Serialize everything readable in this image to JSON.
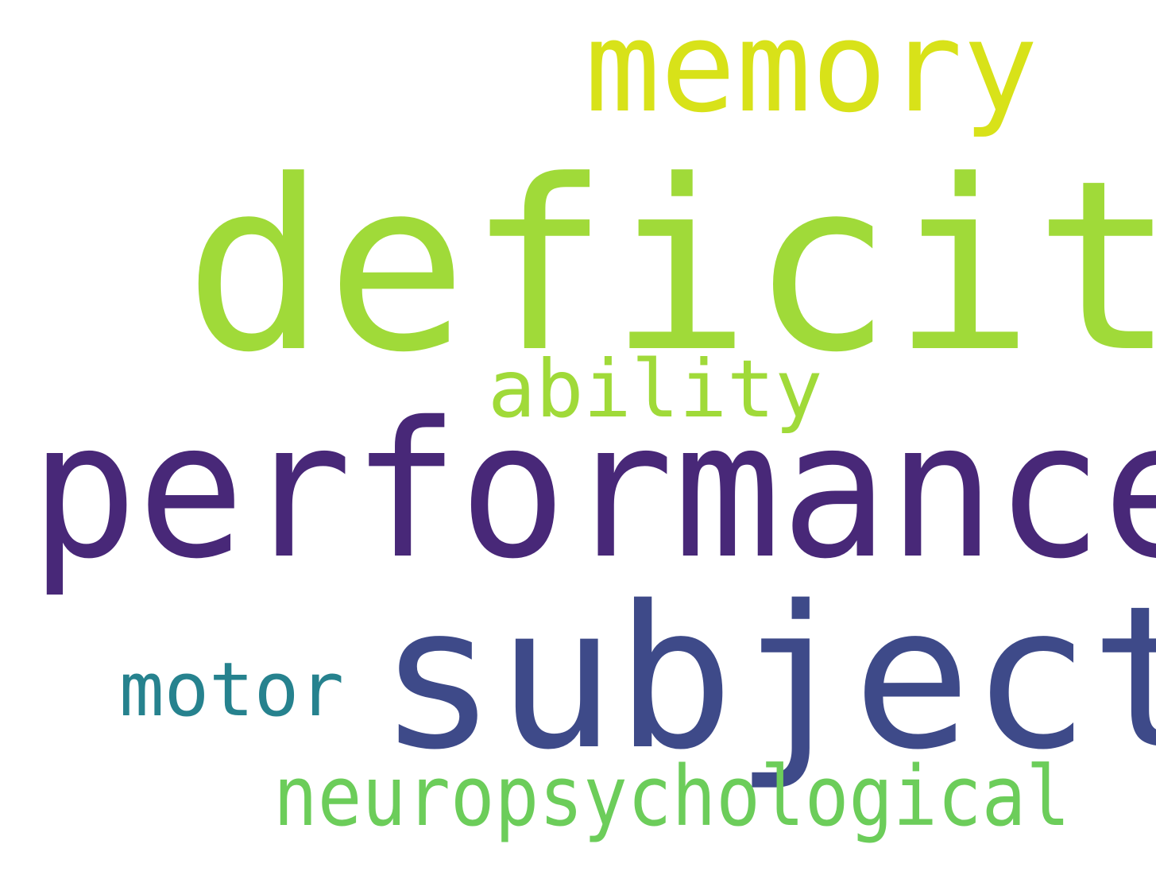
{
  "words": [
    {
      "text": "memory",
      "color": "#d8e219"
    },
    {
      "text": "deficit",
      "color": "#a0da39"
    },
    {
      "text": "ability",
      "color": "#a0da39"
    },
    {
      "text": "performance",
      "color": "#482878"
    },
    {
      "text": "subject",
      "color": "#3e4a89"
    },
    {
      "text": "motor",
      "color": "#26828e"
    },
    {
      "text": "neuropsychological",
      "color": "#6ccd5a"
    }
  ]
}
